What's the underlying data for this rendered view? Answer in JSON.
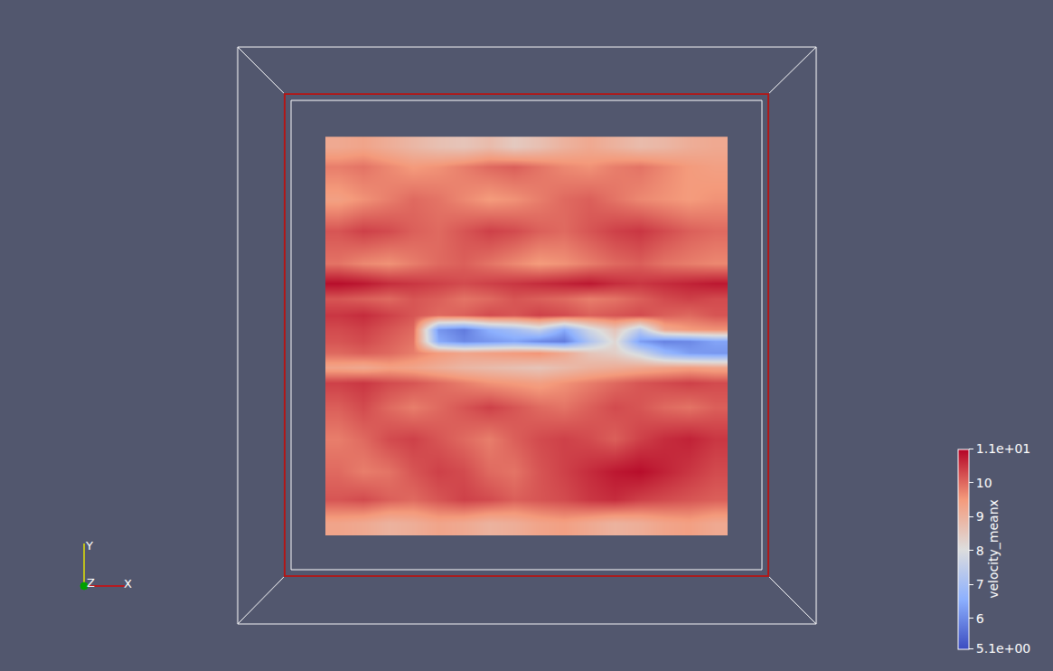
{
  "chart_data": {
    "type": "heatmap",
    "tick_labels": false,
    "xlim": [
      0,
      100
    ],
    "ylim": [
      0,
      100
    ],
    "x": [
      3.125,
      9.375,
      15.625,
      21.875,
      28.125,
      34.375,
      40.625,
      46.875,
      53.125,
      59.375,
      65.625,
      71.875,
      78.125,
      84.375,
      90.625,
      96.875
    ],
    "y": [
      3,
      9,
      16,
      24,
      32,
      38,
      42,
      45.5,
      48.5,
      51.5,
      55,
      59,
      63,
      68,
      76,
      84,
      92,
      97
    ],
    "z": [
      [
        9.3,
        9.2,
        9.0,
        9.1,
        9.3,
        9.2,
        9.0,
        9.1,
        9.3,
        9.4,
        9.2,
        9.0,
        9.1,
        9.3,
        9.4,
        9.2
      ],
      [
        10.2,
        10.3,
        10.1,
        10.0,
        10.2,
        10.4,
        10.3,
        10.1,
        10.2,
        10.3,
        10.5,
        10.6,
        10.4,
        10.3,
        10.2,
        10.1
      ],
      [
        10.0,
        9.8,
        9.9,
        10.2,
        10.4,
        10.3,
        10.0,
        9.9,
        10.2,
        10.4,
        10.6,
        10.8,
        10.9,
        10.7,
        10.5,
        10.3
      ],
      [
        9.8,
        10.0,
        10.3,
        10.4,
        10.2,
        10.0,
        9.8,
        10.1,
        10.3,
        10.4,
        10.3,
        10.1,
        10.4,
        10.6,
        10.7,
        10.5
      ],
      [
        10.1,
        10.3,
        10.0,
        9.8,
        10.0,
        10.2,
        10.4,
        10.2,
        10.0,
        9.9,
        10.1,
        10.3,
        10.2,
        10.0,
        9.9,
        10.1
      ],
      [
        10.4,
        10.5,
        10.3,
        10.2,
        10.0,
        9.8,
        9.6,
        9.5,
        9.4,
        9.6,
        9.8,
        10.0,
        10.2,
        10.3,
        10.4,
        10.3
      ],
      [
        9.3,
        9.2,
        9.4,
        9.3,
        9.1,
        8.9,
        8.8,
        8.7,
        8.6,
        8.8,
        9.0,
        9.1,
        9.2,
        9.3,
        9.4,
        9.3
      ],
      [
        10.0,
        10.1,
        10.0,
        9.8,
        9.5,
        9.3,
        9.4,
        9.5,
        9.6,
        9.2,
        8.6,
        8.4,
        7.8,
        6.8,
        6.3,
        6.2
      ],
      [
        10.2,
        10.3,
        10.1,
        9.9,
        6.5,
        6.0,
        6.2,
        6.4,
        6.0,
        5.8,
        7.2,
        8.2,
        6.3,
        5.9,
        6.0,
        6.4
      ],
      [
        10.3,
        10.4,
        10.2,
        10.0,
        6.2,
        5.8,
        6.6,
        7.0,
        7.6,
        6.5,
        7.8,
        8.6,
        7.4,
        9.2,
        9.5,
        9.6
      ],
      [
        10.5,
        10.6,
        10.4,
        10.2,
        10.0,
        10.1,
        10.3,
        10.2,
        10.4,
        10.3,
        10.1,
        10.2,
        10.3,
        10.1,
        10.0,
        10.2
      ],
      [
        10.2,
        10.1,
        10.0,
        10.2,
        10.1,
        9.9,
        10.0,
        10.2,
        10.1,
        10.0,
        9.8,
        9.9,
        10.1,
        10.3,
        10.4,
        10.3
      ],
      [
        10.9,
        10.8,
        10.6,
        10.5,
        10.4,
        10.3,
        10.4,
        10.5,
        10.6,
        10.7,
        10.8,
        10.6,
        10.5,
        10.6,
        10.7,
        10.8
      ],
      [
        9.9,
        9.7,
        9.6,
        9.8,
        10.0,
        10.1,
        9.9,
        9.7,
        9.5,
        9.6,
        9.8,
        10.0,
        10.1,
        9.9,
        9.8,
        9.7
      ],
      [
        10.2,
        10.4,
        10.3,
        10.1,
        10.0,
        10.2,
        10.4,
        10.3,
        10.1,
        10.0,
        10.2,
        10.4,
        10.5,
        10.3,
        10.1,
        10.0
      ],
      [
        9.4,
        9.6,
        9.8,
        10.0,
        9.9,
        9.7,
        9.5,
        9.6,
        9.8,
        10.0,
        10.1,
        9.9,
        9.7,
        9.6,
        9.5,
        9.6
      ],
      [
        9.8,
        9.9,
        9.7,
        9.5,
        9.6,
        9.8,
        10.0,
        10.1,
        9.9,
        9.7,
        9.6,
        9.8,
        9.9,
        9.7,
        9.5,
        9.4
      ],
      [
        9.2,
        9.3,
        9.1,
        8.9,
        8.7,
        8.6,
        8.8,
        8.5,
        8.7,
        9.0,
        9.2,
        9.0,
        8.8,
        8.9,
        9.1,
        9.2
      ]
    ],
    "colorbar": {
      "title": "velocity_meanx",
      "range": [
        5.1,
        11
      ],
      "ticks": [
        {
          "value": 11,
          "label": "1.1e+01"
        },
        10,
        9,
        8,
        7,
        6,
        {
          "value": 5.1,
          "label": "5.1e+00"
        }
      ]
    },
    "annotations": [
      "Y",
      "Z",
      "X"
    ]
  }
}
